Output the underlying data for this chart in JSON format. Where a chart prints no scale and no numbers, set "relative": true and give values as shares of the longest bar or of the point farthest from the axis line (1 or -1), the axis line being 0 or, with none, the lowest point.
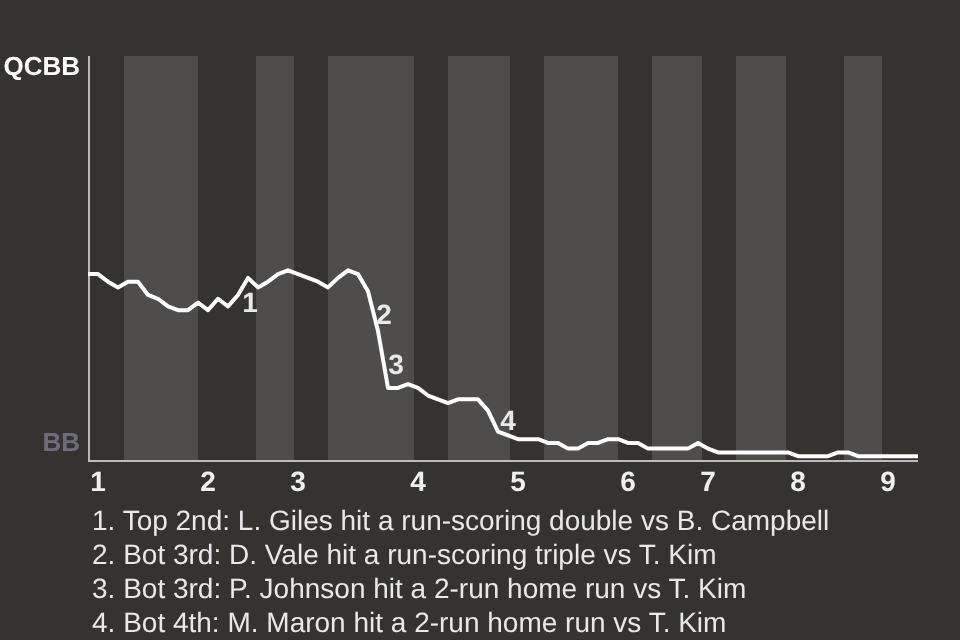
{
  "chart_data": {
    "type": "line",
    "relative": true,
    "categories": [
      null,
      "1",
      null,
      null,
      null,
      null,
      null,
      null,
      null,
      null,
      null,
      null,
      "2",
      null,
      null,
      null,
      null,
      null,
      null,
      null,
      null,
      "3",
      null,
      null,
      null,
      null,
      null,
      null,
      null,
      null,
      null,
      null,
      null,
      "4",
      null,
      null,
      null,
      null,
      null,
      null,
      null,
      null,
      null,
      "5",
      null,
      null,
      null,
      null,
      null,
      null,
      null,
      null,
      null,
      null,
      "6",
      null,
      null,
      null,
      null,
      null,
      null,
      null,
      "7",
      null,
      null,
      null,
      null,
      null,
      null,
      null,
      null,
      "8",
      null,
      null,
      null,
      null,
      null,
      null,
      null,
      null,
      "9",
      null,
      null,
      null
    ],
    "series": [
      {
        "values": [
          0.98,
          0.98,
          0.94,
          0.91,
          0.94,
          0.94,
          0.87,
          0.85,
          0.81,
          0.79,
          0.79,
          0.83,
          0.79,
          0.85,
          0.81,
          0.87,
          0.96,
          0.91,
          0.94,
          0.98,
          1,
          0.98,
          0.96,
          0.94,
          0.91,
          0.96,
          1,
          0.98,
          0.89,
          0.68,
          0.38,
          0.38,
          0.4,
          0.38,
          0.34,
          0.32,
          0.3,
          0.32,
          0.32,
          0.32,
          0.26,
          0.15,
          0.13,
          0.11,
          0.11,
          0.11,
          0.09,
          0.09,
          0.06,
          0.06,
          0.09,
          0.09,
          0.11,
          0.11,
          0.09,
          0.09,
          0.06,
          0.06,
          0.06,
          0.06,
          0.06,
          0.09,
          0.06,
          0.04,
          0.04,
          0.04,
          0.04,
          0.04,
          0.04,
          0.04,
          0.04,
          0.02,
          0.02,
          0.02,
          0.02,
          0.04,
          0.04,
          0.02,
          0.02,
          0.02,
          0.02,
          0.02,
          0.02,
          0.02
        ],
        "color": "#ffffff"
      }
    ],
    "marker": "none",
    "line_style": "solid",
    "legend": false,
    "annotations": [
      "QCBB",
      "BB",
      "1",
      "2",
      "3",
      "4",
      "1. Top 2nd: L. Giles hit a run-scoring double vs B. Campbell",
      "2. Bot 3rd: D. Vale hit a run-scoring triple vs T. Kim",
      "3. Bot 3rd: P. Johnson hit a 2-run home run vs T. Kim",
      "4. Bot 4th: M. Maron hit a 2-run home run vs T. Kim"
    ]
  }
}
